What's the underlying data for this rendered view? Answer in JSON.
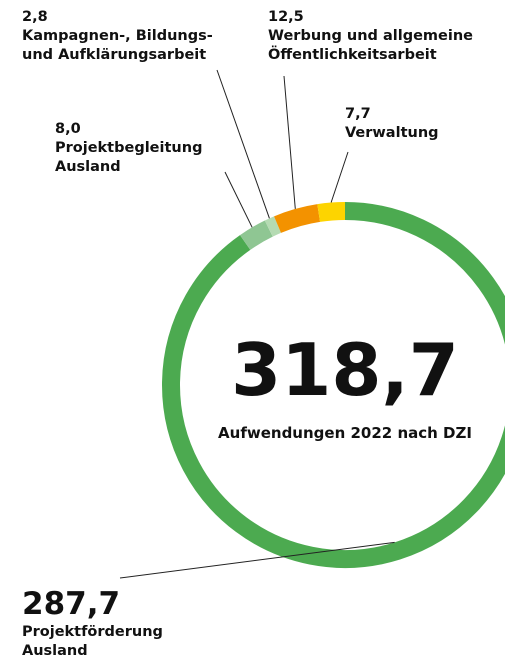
{
  "chart_data": {
    "type": "donut",
    "center_label": "318,7",
    "subtitle": "Aufwendungen 2022 nach DZI",
    "categories": [
      "Projektförderung\nAusland",
      "Projektbegleitung\nAusland",
      "Kampagnen-, Bildungs-\nund Aufklärungsarbeit",
      "Werbung und allgemeine\nÖffentlichkeitsarbeit",
      "Verwaltung"
    ],
    "values": [
      287.7,
      8.0,
      2.8,
      12.5,
      7.7
    ],
    "value_labels": [
      "287,7",
      "8,0",
      "2,8",
      "12,5",
      "7,7"
    ],
    "colors": [
      "#4caa50",
      "#8fc693",
      "#b5dbb3",
      "#f39200",
      "#fdd400"
    ]
  }
}
